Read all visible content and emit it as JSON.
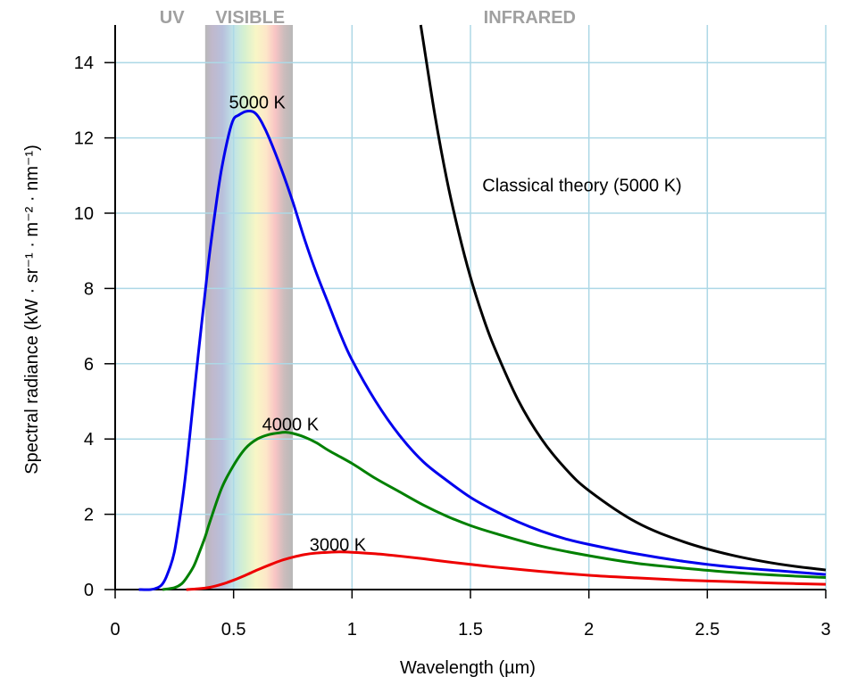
{
  "chart_data": {
    "type": "line",
    "xlabel": "Wavelength (µm)",
    "ylabel": "Spectral radiance (kW · sr⁻¹ · m⁻² · nm⁻¹)",
    "xlim": [
      0,
      3
    ],
    "ylim": [
      0,
      15
    ],
    "xticks": [
      0,
      0.5,
      1,
      1.5,
      2,
      2.5,
      3
    ],
    "xtick_labels": [
      "0",
      "0.5",
      "1",
      "1.5",
      "2",
      "2.5",
      "3"
    ],
    "yticks": [
      0,
      2,
      4,
      6,
      8,
      10,
      12,
      14
    ],
    "ytick_labels": [
      "0",
      "2",
      "4",
      "6",
      "8",
      "10",
      "12",
      "14"
    ],
    "grid": true,
    "grid_color": "#add8e6",
    "regions": [
      {
        "label": "UV",
        "x_center": 0.24
      },
      {
        "label": "VISIBLE",
        "x_center": 0.57
      },
      {
        "label": "INFRARED",
        "x_center": 1.75
      }
    ],
    "visible_band": {
      "x_range": [
        0.38,
        0.75
      ]
    },
    "series": [
      {
        "name": "5000 K",
        "color": "#0000ee",
        "x": [
          0.1,
          0.15,
          0.18,
          0.2,
          0.22,
          0.25,
          0.28,
          0.3,
          0.33,
          0.35,
          0.38,
          0.4,
          0.43,
          0.45,
          0.48,
          0.5,
          0.52,
          0.55,
          0.58,
          0.6,
          0.62,
          0.65,
          0.7,
          0.75,
          0.8,
          0.85,
          0.9,
          0.95,
          1.0,
          1.1,
          1.2,
          1.3,
          1.4,
          1.5,
          1.6,
          1.7,
          1.8,
          1.9,
          2.0,
          2.2,
          2.4,
          2.6,
          2.8,
          3.0
        ],
        "y": [
          0.0,
          0.0,
          0.05,
          0.15,
          0.4,
          1.0,
          2.2,
          3.2,
          5.0,
          6.2,
          7.9,
          9.0,
          10.4,
          11.2,
          12.1,
          12.5,
          12.6,
          12.7,
          12.7,
          12.6,
          12.4,
          12.0,
          11.2,
          10.3,
          9.3,
          8.4,
          7.6,
          6.8,
          6.1,
          5.0,
          4.1,
          3.4,
          2.9,
          2.45,
          2.1,
          1.8,
          1.55,
          1.35,
          1.2,
          0.95,
          0.75,
          0.6,
          0.5,
          0.4
        ]
      },
      {
        "name": "4000 K",
        "color": "#008000",
        "x": [
          0.2,
          0.25,
          0.28,
          0.3,
          0.33,
          0.35,
          0.38,
          0.4,
          0.45,
          0.5,
          0.55,
          0.6,
          0.65,
          0.7,
          0.72,
          0.75,
          0.8,
          0.85,
          0.9,
          1.0,
          1.1,
          1.2,
          1.3,
          1.4,
          1.5,
          1.6,
          1.8,
          2.0,
          2.2,
          2.4,
          2.6,
          2.8,
          3.0
        ],
        "y": [
          0.0,
          0.05,
          0.15,
          0.3,
          0.6,
          0.9,
          1.4,
          1.8,
          2.7,
          3.3,
          3.75,
          4.0,
          4.12,
          4.17,
          4.18,
          4.15,
          4.05,
          3.9,
          3.7,
          3.35,
          2.95,
          2.6,
          2.25,
          1.95,
          1.7,
          1.5,
          1.15,
          0.9,
          0.7,
          0.57,
          0.46,
          0.38,
          0.32
        ]
      },
      {
        "name": "3000 K",
        "color": "#ee0000",
        "x": [
          0.3,
          0.35,
          0.4,
          0.45,
          0.5,
          0.55,
          0.6,
          0.65,
          0.7,
          0.75,
          0.8,
          0.85,
          0.9,
          0.95,
          1.0,
          1.1,
          1.2,
          1.3,
          1.4,
          1.5,
          1.6,
          1.8,
          2.0,
          2.2,
          2.4,
          2.6,
          2.8,
          3.0
        ],
        "y": [
          0.0,
          0.02,
          0.06,
          0.14,
          0.25,
          0.38,
          0.52,
          0.65,
          0.77,
          0.86,
          0.93,
          0.97,
          0.99,
          1.0,
          0.99,
          0.95,
          0.89,
          0.82,
          0.74,
          0.67,
          0.6,
          0.48,
          0.38,
          0.31,
          0.25,
          0.21,
          0.17,
          0.14
        ]
      },
      {
        "name": "Classical theory (5000 K)",
        "color": "#000000",
        "x": [
          1.29,
          1.3,
          1.35,
          1.4,
          1.45,
          1.5,
          1.55,
          1.6,
          1.7,
          1.8,
          1.9,
          2.0,
          2.2,
          2.4,
          2.6,
          2.8,
          3.0
        ],
        "y": [
          15.0,
          14.6,
          12.6,
          10.9,
          9.5,
          8.3,
          7.3,
          6.45,
          5.05,
          4.0,
          3.22,
          2.63,
          1.79,
          1.27,
          0.92,
          0.68,
          0.52
        ]
      }
    ],
    "labels": [
      {
        "text": "5000 K",
        "x": 0.6,
        "y": 12.95
      },
      {
        "text": "4000 K",
        "x": 0.74,
        "y": 4.4
      },
      {
        "text": "3000 K",
        "x": 0.94,
        "y": 1.2
      },
      {
        "text": "Classical theory (5000 K)",
        "x": 1.55,
        "y": 10.75
      }
    ]
  }
}
